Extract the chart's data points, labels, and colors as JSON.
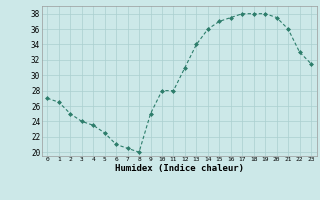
{
  "x": [
    0,
    1,
    2,
    3,
    4,
    5,
    6,
    7,
    8,
    9,
    10,
    11,
    12,
    13,
    14,
    15,
    16,
    17,
    18,
    19,
    20,
    21,
    22,
    23
  ],
  "y": [
    27,
    26.5,
    25,
    24,
    23.5,
    22.5,
    21,
    20.5,
    20,
    25,
    28,
    28,
    31,
    34,
    36,
    37,
    37.5,
    38,
    38,
    38,
    37.5,
    36,
    33,
    31.5
  ],
  "xlabel": "Humidex (Indice chaleur)",
  "xlim": [
    -0.5,
    23.5
  ],
  "ylim": [
    19.5,
    39
  ],
  "yticks": [
    20,
    22,
    24,
    26,
    28,
    30,
    32,
    34,
    36,
    38
  ],
  "xticks": [
    0,
    1,
    2,
    3,
    4,
    5,
    6,
    7,
    8,
    9,
    10,
    11,
    12,
    13,
    14,
    15,
    16,
    17,
    18,
    19,
    20,
    21,
    22,
    23
  ],
  "line_color": "#2d7d6b",
  "marker_color": "#2d7d6b",
  "bg_color": "#cce8e8",
  "grid_color": "#aacfcf"
}
